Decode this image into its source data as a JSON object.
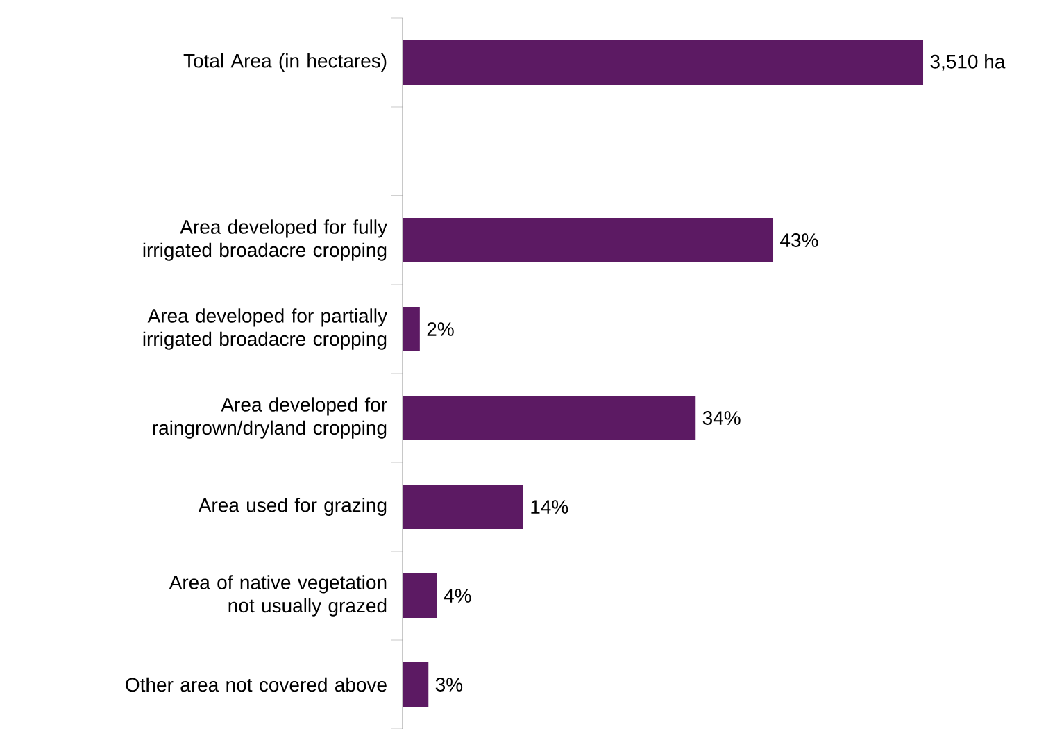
{
  "chart_data": [
    {
      "type": "bar",
      "orientation": "horizontal",
      "categories": [
        "Total Area (in hectares)"
      ],
      "values": [
        3510
      ],
      "value_labels": [
        "3,510 ha"
      ],
      "color": "#5c1a63"
    },
    {
      "type": "bar",
      "orientation": "horizontal",
      "categories": [
        "Area developed for fully irrigated broadacre cropping",
        "Area developed for partially irrigated broadacre cropping",
        "Area developed for raingrown/dryland cropping",
        "Area used for grazing",
        "Area of native vegetation not usually grazed",
        "Other area not covered above"
      ],
      "values": [
        43,
        2,
        34,
        14,
        4,
        3
      ],
      "value_labels": [
        "43%",
        "2%",
        "34%",
        "14%",
        "4%",
        "3%"
      ],
      "color": "#5c1a63"
    }
  ]
}
